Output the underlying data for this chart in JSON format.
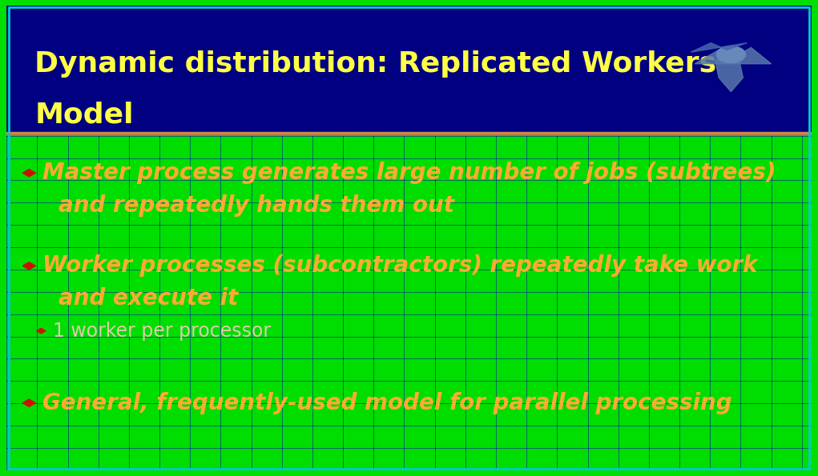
{
  "title_line1": "Dynamic distribution: Replicated Workers",
  "title_line2": "Model",
  "title_color": "#FFFF44",
  "title_bg_color": "#000080",
  "body_bg_color": "#000090",
  "border_outer_color": "#00DD00",
  "border_inner_color": "#00CCCC",
  "divider_color": "#CC8844",
  "bullet_color": "#CC1100",
  "bullet_text_color": "#FFAA33",
  "subbullet_text_color": "#DDCCAA",
  "bullet1_line1": "Master process generates large number of jobs (subtrees)",
  "bullet1_line2": "and repeatedly hands them out",
  "bullet2_line1": "Worker processes (subcontractors) repeatedly take work",
  "bullet2_line2": "and execute it",
  "subbullet1": "1 worker per processor",
  "bullet3": "General, frequently-used model for parallel processing",
  "grid_color": "#0000BB",
  "title_fontsize": 26,
  "body_fontsize": 20,
  "subbullet_fontsize": 17
}
